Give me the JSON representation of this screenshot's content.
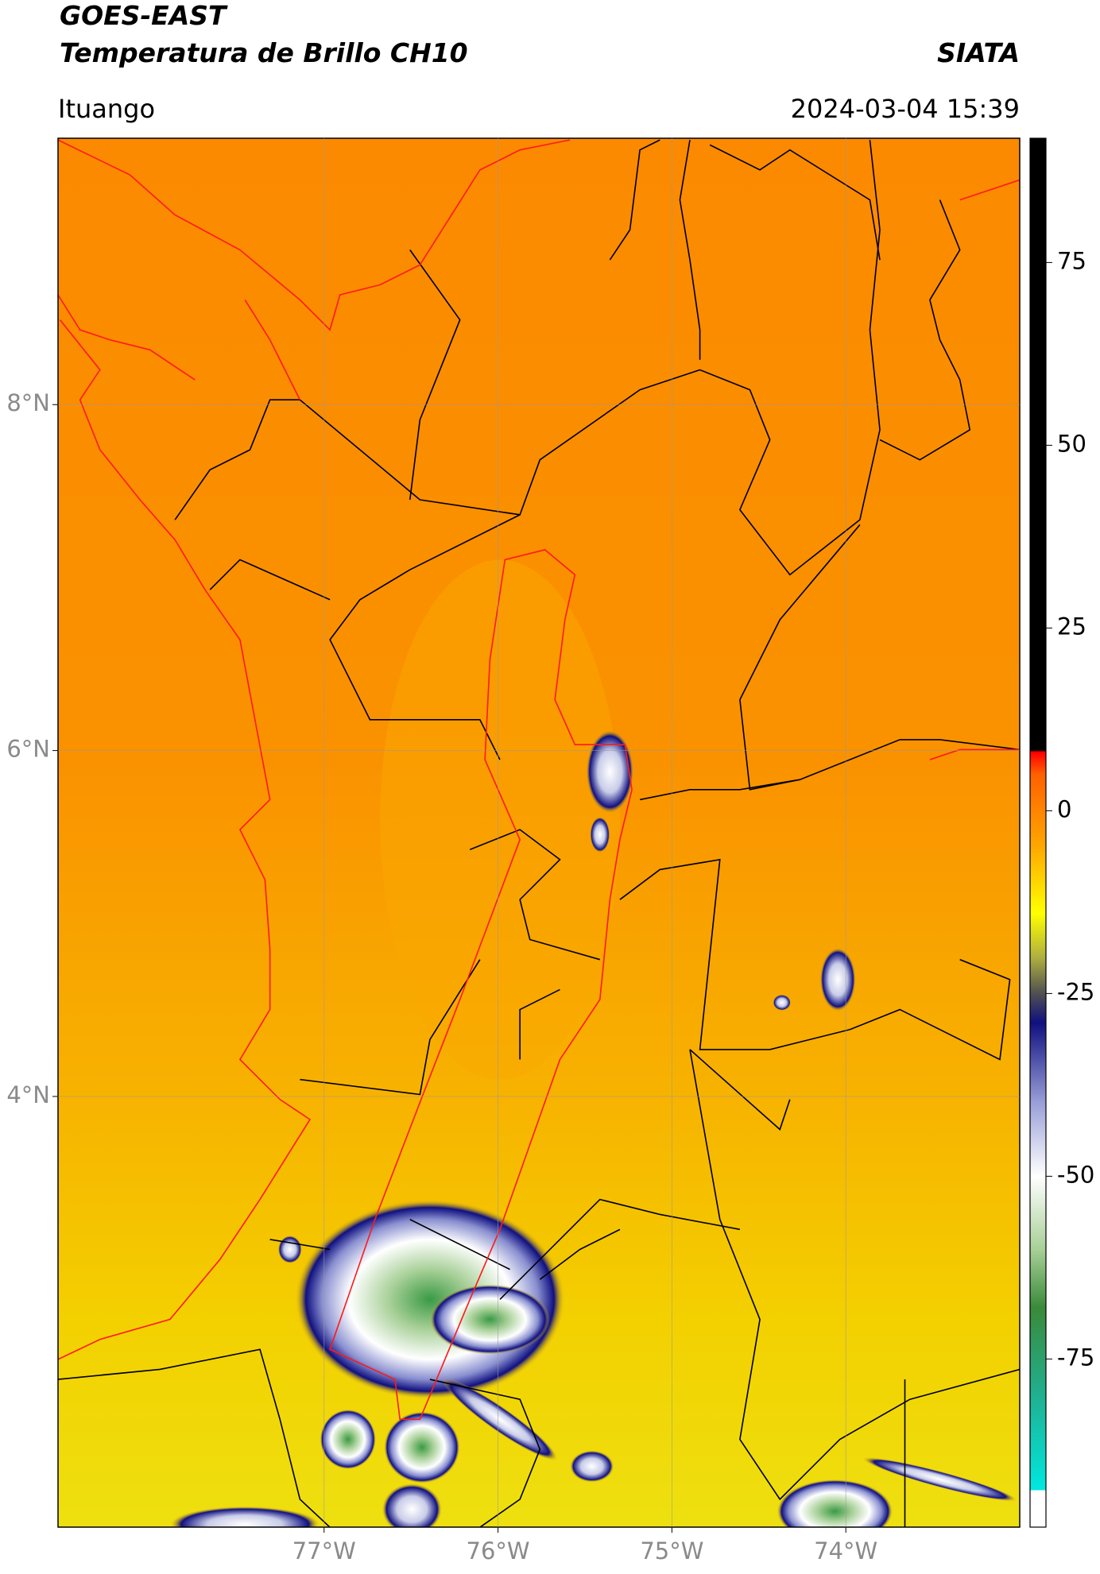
{
  "header": {
    "title": "GOES-EAST",
    "subtitle": "Temperatura de Brillo CH10",
    "source": "SIATA",
    "location": "Ituango",
    "datetime": "2024-03-04 15:39"
  },
  "map": {
    "xlim": [
      -78.53,
      -73.0
    ],
    "ylim": [
      1.51,
      9.54
    ],
    "xticks": [
      {
        "value": -77,
        "label": "77°W"
      },
      {
        "value": -76,
        "label": "76°W"
      },
      {
        "value": -75,
        "label": "75°W"
      },
      {
        "value": -74,
        "label": "74°W"
      }
    ],
    "yticks": [
      {
        "value": 4,
        "label": "4°N"
      },
      {
        "value": 6,
        "label": "6°N"
      },
      {
        "value": 8,
        "label": "8°N"
      }
    ],
    "grid": true
  },
  "colorbar": {
    "lim": [
      -98,
      92
    ],
    "ticks": [
      -75,
      -50,
      -25,
      0,
      25,
      50,
      75
    ],
    "colors": [
      {
        "value": -98,
        "color": "#ffffff"
      },
      {
        "value": -93,
        "color": "#ffffff"
      },
      {
        "value": -92.9,
        "color": "#00e8e0"
      },
      {
        "value": -80,
        "color": "#20b090"
      },
      {
        "value": -68,
        "color": "#3a8a3a"
      },
      {
        "value": -60,
        "color": "#a8d098"
      },
      {
        "value": -50,
        "color": "#ffffff"
      },
      {
        "value": -40,
        "color": "#9aa0d8"
      },
      {
        "value": -29,
        "color": "#101080"
      },
      {
        "value": -25,
        "color": "#505050"
      },
      {
        "value": -20,
        "color": "#b0b040"
      },
      {
        "value": -14,
        "color": "#ffff00"
      },
      {
        "value": -5,
        "color": "#ffa800"
      },
      {
        "value": 5,
        "color": "#ff6000"
      },
      {
        "value": 8,
        "color": "#ff0000"
      },
      {
        "value": 8.3,
        "color": "#000000"
      },
      {
        "value": 92,
        "color": "#000000"
      }
    ]
  }
}
